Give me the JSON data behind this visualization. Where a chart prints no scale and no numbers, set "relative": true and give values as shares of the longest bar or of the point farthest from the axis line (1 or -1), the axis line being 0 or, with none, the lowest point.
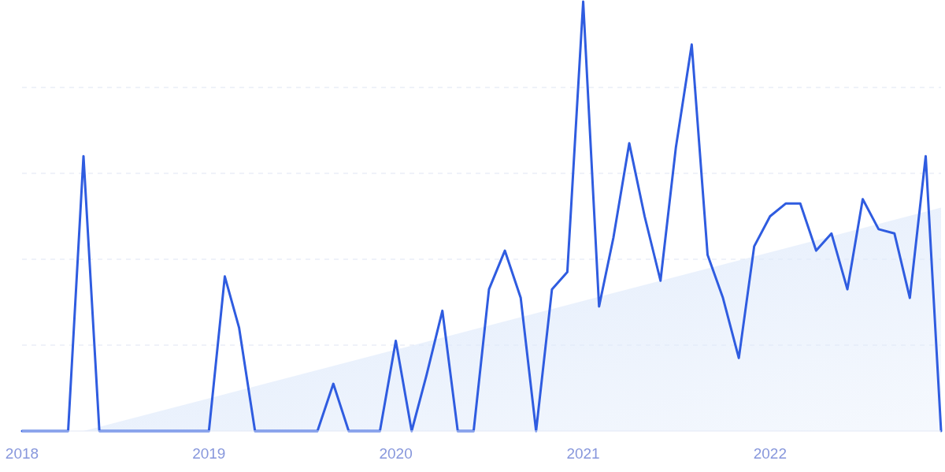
{
  "chart_data": {
    "type": "line",
    "relative": true,
    "grid": "y",
    "xlim": [
      "2018-01",
      "2022-12"
    ],
    "xticks": [
      "2018",
      "2019",
      "2020",
      "2021",
      "2022"
    ],
    "series": [
      {
        "type": "area",
        "color": "#dfeafb",
        "x": [
          "2018-05",
          "2022-12"
        ],
        "values": [
          0,
          0.52
        ]
      },
      {
        "color": "#2f5ce0",
        "x": [
          "2018-01",
          "2018-02",
          "2018-03",
          "2018-04",
          "2018-05",
          "2018-06",
          "2018-07",
          "2018-08",
          "2018-09",
          "2018-10",
          "2018-11",
          "2018-12",
          "2019-01",
          "2019-02",
          "2019-03",
          "2019-04",
          "2019-05",
          "2019-06",
          "2019-07",
          "2019-08",
          "2019-09",
          "2019-10",
          "2019-11",
          "2019-12",
          "2020-01",
          "2020-02",
          "2020-03",
          "2020-04",
          "2020-05",
          "2020-06",
          "2020-07",
          "2020-08",
          "2020-09",
          "2020-10",
          "2020-11",
          "2020-12",
          "2021-01",
          "2021-02",
          "2021-03",
          "2021-04",
          "2021-05",
          "2021-06",
          "2021-07",
          "2021-08",
          "2021-09",
          "2021-10",
          "2021-11",
          "2021-12",
          "2022-01",
          "2022-02",
          "2022-03",
          "2022-04",
          "2022-05",
          "2022-06",
          "2022-07",
          "2022-08",
          "2022-09",
          "2022-10",
          "2022-11",
          "2022-12"
        ],
        "values": [
          0,
          0,
          0,
          0,
          0.64,
          0,
          0,
          0,
          0,
          0,
          0,
          0,
          0,
          0.36,
          0.24,
          0,
          0,
          0,
          0,
          0,
          0.11,
          0,
          0,
          0,
          0.21,
          0,
          0.13,
          0.28,
          0,
          0,
          0.33,
          0.42,
          0.31,
          0,
          0.33,
          0.37,
          1,
          0.29,
          0.45,
          0.67,
          0.5,
          0.35,
          0.66,
          0.9,
          0.41,
          0.31,
          0.17,
          0.43,
          0.5,
          0.53,
          0.53,
          0.42,
          0.46,
          0.33,
          0.54,
          0.47,
          0.46,
          0.31,
          0.64,
          0
        ]
      }
    ]
  }
}
